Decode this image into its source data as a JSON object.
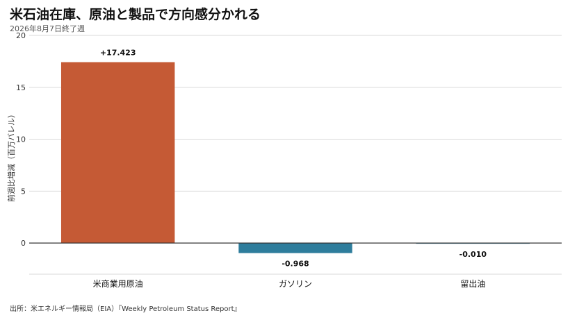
{
  "chart_data": {
    "type": "bar",
    "title": "米石油在庫、原油と製品で方向感分かれる",
    "subtitle": "2026年8月7日終了週",
    "ylabel": "前週比増減（百万バレル）",
    "xlabel": "",
    "categories": [
      "米商業用原油",
      "ガソリン",
      "留出油"
    ],
    "values": [
      17.423,
      -0.968,
      -0.01
    ],
    "data_labels": [
      "+17.423",
      "-0.968",
      "-0.010"
    ],
    "bar_colors": [
      "#c55a35",
      "#2e7d9c",
      "#2e7d9c"
    ],
    "ylim": [
      -3,
      20
    ],
    "yticks": [
      0,
      5,
      10,
      15,
      20
    ],
    "grid": true,
    "legend": "none"
  },
  "source": "出所：米エネルギー情報局（EIA）『Weekly Petroleum Status Report』"
}
